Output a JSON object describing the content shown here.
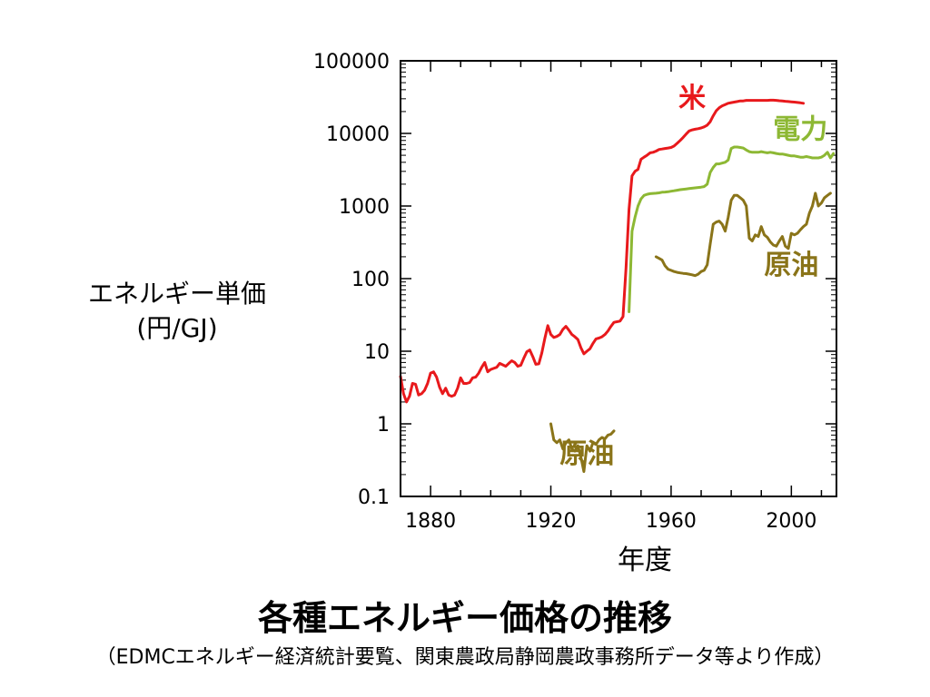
{
  "chart_data": {
    "type": "line",
    "title": "各種エネルギー価格の推移",
    "subtitle": "（EDMCエネルギー経済統計要覧、関東農政局静岡農政事務所データ等より作成）",
    "xlabel": "年度",
    "ylabel": [
      "エネルギー単価",
      "(円/GJ)"
    ],
    "xlim": [
      1870,
      2015
    ],
    "ylim": [
      0.1,
      100000
    ],
    "yscale": "log",
    "xticks": [
      1880,
      1920,
      1960,
      2000
    ],
    "yticks": [
      0.1,
      1,
      10,
      100,
      1000,
      10000,
      100000
    ],
    "yticklabels": [
      "0.1",
      "1",
      "10",
      "100",
      "1000",
      "10000",
      "100000"
    ],
    "grid": false,
    "series": [
      {
        "name": "米",
        "color": "#e8191c",
        "points": [
          [
            1870,
            4.5
          ],
          [
            1871,
            2.6
          ],
          [
            1872,
            2.0
          ],
          [
            1873,
            2.4
          ],
          [
            1874,
            3.6
          ],
          [
            1875,
            3.5
          ],
          [
            1876,
            2.5
          ],
          [
            1877,
            2.6
          ],
          [
            1878,
            2.9
          ],
          [
            1879,
            3.6
          ],
          [
            1880,
            5.0
          ],
          [
            1881,
            5.2
          ],
          [
            1882,
            4.4
          ],
          [
            1883,
            3.2
          ],
          [
            1884,
            2.6
          ],
          [
            1885,
            3.1
          ],
          [
            1886,
            2.5
          ],
          [
            1887,
            2.4
          ],
          [
            1888,
            2.5
          ],
          [
            1889,
            3.1
          ],
          [
            1890,
            4.3
          ],
          [
            1891,
            3.6
          ],
          [
            1892,
            3.6
          ],
          [
            1893,
            3.7
          ],
          [
            1894,
            4.3
          ],
          [
            1895,
            4.4
          ],
          [
            1896,
            5.0
          ],
          [
            1897,
            6.0
          ],
          [
            1898,
            7.0
          ],
          [
            1899,
            5.2
          ],
          [
            1900,
            5.6
          ],
          [
            1901,
            5.8
          ],
          [
            1902,
            6.0
          ],
          [
            1903,
            6.8
          ],
          [
            1904,
            6.5
          ],
          [
            1905,
            6.2
          ],
          [
            1906,
            6.8
          ],
          [
            1907,
            7.4
          ],
          [
            1908,
            7.0
          ],
          [
            1909,
            6.2
          ],
          [
            1910,
            6.4
          ],
          [
            1911,
            8.0
          ],
          [
            1912,
            9.8
          ],
          [
            1913,
            10.4
          ],
          [
            1914,
            8.4
          ],
          [
            1915,
            6.6
          ],
          [
            1916,
            6.7
          ],
          [
            1917,
            9.5
          ],
          [
            1918,
            15.0
          ],
          [
            1919,
            22.5
          ],
          [
            1920,
            17.0
          ],
          [
            1921,
            15.5
          ],
          [
            1922,
            16.0
          ],
          [
            1923,
            17.0
          ],
          [
            1924,
            20.0
          ],
          [
            1925,
            22.0
          ],
          [
            1926,
            19.5
          ],
          [
            1927,
            17.0
          ],
          [
            1928,
            15.8
          ],
          [
            1929,
            14.5
          ],
          [
            1930,
            11.2
          ],
          [
            1931,
            9.2
          ],
          [
            1932,
            10.0
          ],
          [
            1933,
            10.8
          ],
          [
            1934,
            12.8
          ],
          [
            1935,
            14.8
          ],
          [
            1936,
            15.2
          ],
          [
            1937,
            15.8
          ],
          [
            1938,
            17.0
          ],
          [
            1939,
            19.0
          ],
          [
            1940,
            22.0
          ],
          [
            1941,
            25.0
          ],
          [
            1942,
            25.5
          ],
          [
            1943,
            26.0
          ],
          [
            1944,
            30.0
          ],
          [
            1945,
            140.0
          ],
          [
            1946,
            900.0
          ],
          [
            1947,
            2600.0
          ],
          [
            1948,
            3000.0
          ],
          [
            1949,
            3200.0
          ],
          [
            1950,
            4400.0
          ],
          [
            1951,
            4700.0
          ],
          [
            1952,
            5000.0
          ],
          [
            1953,
            5400.0
          ],
          [
            1954,
            5500.0
          ],
          [
            1955,
            5700.0
          ],
          [
            1956,
            6000.0
          ],
          [
            1957,
            6100.0
          ],
          [
            1958,
            6200.0
          ],
          [
            1959,
            6300.0
          ],
          [
            1960,
            6400.0
          ],
          [
            1961,
            6700.0
          ],
          [
            1962,
            7300.0
          ],
          [
            1963,
            8000.0
          ],
          [
            1964,
            8800.0
          ],
          [
            1965,
            9800.0
          ],
          [
            1966,
            10800.0
          ],
          [
            1967,
            11200.0
          ],
          [
            1968,
            11400.0
          ],
          [
            1969,
            11600.0
          ],
          [
            1970,
            11900.0
          ],
          [
            1971,
            12300.0
          ],
          [
            1972,
            13000.0
          ],
          [
            1973,
            14500.0
          ],
          [
            1974,
            17500.0
          ],
          [
            1975,
            20500.0
          ],
          [
            1976,
            22500.0
          ],
          [
            1977,
            24000.0
          ],
          [
            1978,
            25000.0
          ],
          [
            1979,
            26000.0
          ],
          [
            1980,
            26500.0
          ],
          [
            1981,
            27000.0
          ],
          [
            1982,
            27500.0
          ],
          [
            1983,
            28000.0
          ],
          [
            1984,
            28000.0
          ],
          [
            1985,
            28500.0
          ],
          [
            1986,
            28500.0
          ],
          [
            1987,
            28500.0
          ],
          [
            1988,
            28500.0
          ],
          [
            1989,
            28500.0
          ],
          [
            1990,
            28500.0
          ],
          [
            1991,
            28500.0
          ],
          [
            1992,
            28500.0
          ],
          [
            1993,
            28700.0
          ],
          [
            1994,
            28700.0
          ],
          [
            1995,
            28500.0
          ],
          [
            1996,
            28200.0
          ],
          [
            1997,
            28000.0
          ],
          [
            1998,
            27700.0
          ],
          [
            1999,
            27500.0
          ],
          [
            2000,
            27200.0
          ],
          [
            2001,
            27000.0
          ],
          [
            2002,
            26700.0
          ],
          [
            2003,
            26400.0
          ],
          [
            2004,
            26000.0
          ]
        ]
      },
      {
        "name": "電力",
        "color": "#8db834",
        "points": [
          [
            1946,
            35
          ],
          [
            1947,
            450
          ],
          [
            1948,
            700
          ],
          [
            1949,
            1000
          ],
          [
            1950,
            1250
          ],
          [
            1951,
            1400
          ],
          [
            1952,
            1450
          ],
          [
            1953,
            1480
          ],
          [
            1954,
            1490
          ],
          [
            1955,
            1500
          ],
          [
            1956,
            1520
          ],
          [
            1957,
            1550
          ],
          [
            1958,
            1560
          ],
          [
            1959,
            1570
          ],
          [
            1960,
            1600
          ],
          [
            1961,
            1620
          ],
          [
            1962,
            1650
          ],
          [
            1963,
            1680
          ],
          [
            1964,
            1700
          ],
          [
            1965,
            1720
          ],
          [
            1966,
            1740
          ],
          [
            1967,
            1760
          ],
          [
            1968,
            1780
          ],
          [
            1969,
            1800
          ],
          [
            1970,
            1820
          ],
          [
            1971,
            1850
          ],
          [
            1972,
            2000
          ],
          [
            1973,
            2900
          ],
          [
            1974,
            3400
          ],
          [
            1975,
            3800
          ],
          [
            1976,
            3800
          ],
          [
            1977,
            3900
          ],
          [
            1978,
            4000
          ],
          [
            1979,
            4300
          ],
          [
            1980,
            6200
          ],
          [
            1981,
            6500
          ],
          [
            1982,
            6500
          ],
          [
            1983,
            6400
          ],
          [
            1984,
            6300
          ],
          [
            1985,
            5900
          ],
          [
            1986,
            5600
          ],
          [
            1987,
            5500
          ],
          [
            1988,
            5500
          ],
          [
            1989,
            5500
          ],
          [
            1990,
            5600
          ],
          [
            1991,
            5500
          ],
          [
            1992,
            5400
          ],
          [
            1993,
            5500
          ],
          [
            1994,
            5400
          ],
          [
            1995,
            5300
          ],
          [
            1996,
            5200
          ],
          [
            1997,
            5200
          ],
          [
            1998,
            5100
          ],
          [
            1999,
            5000
          ],
          [
            2000,
            4900
          ],
          [
            2001,
            4900
          ],
          [
            2002,
            4800
          ],
          [
            2003,
            4700
          ],
          [
            2004,
            4700
          ],
          [
            2005,
            4800
          ],
          [
            2006,
            4700
          ],
          [
            2007,
            4600
          ],
          [
            2008,
            4600
          ],
          [
            2009,
            4600
          ],
          [
            2010,
            4700
          ],
          [
            2011,
            5000
          ],
          [
            2012,
            5500
          ],
          [
            2013,
            4600
          ],
          [
            2014,
            5300
          ]
        ]
      },
      {
        "name": "原油",
        "color": "#8a7419",
        "segments": [
          [
            [
              1920,
              1.0
            ],
            [
              1921,
              0.6
            ],
            [
              1922,
              0.55
            ],
            [
              1923,
              0.6
            ],
            [
              1924,
              0.45
            ],
            [
              1925,
              0.55
            ],
            [
              1926,
              0.6
            ],
            [
              1927,
              0.45
            ],
            [
              1928,
              0.42
            ],
            [
              1929,
              0.5
            ],
            [
              1930,
              0.35
            ],
            [
              1931,
              0.22
            ],
            [
              1932,
              0.5
            ],
            [
              1933,
              0.42
            ],
            [
              1934,
              0.55
            ],
            [
              1935,
              0.52
            ],
            [
              1936,
              0.6
            ],
            [
              1937,
              0.65
            ],
            [
              1938,
              0.62
            ],
            [
              1939,
              0.7
            ],
            [
              1940,
              0.72
            ],
            [
              1941,
              0.8
            ]
          ],
          [
            [
              1955,
              200
            ],
            [
              1956,
              190
            ],
            [
              1957,
              180
            ],
            [
              1958,
              150
            ],
            [
              1959,
              135
            ],
            [
              1960,
              130
            ],
            [
              1961,
              125
            ],
            [
              1962,
              122
            ],
            [
              1963,
              120
            ],
            [
              1964,
              118
            ],
            [
              1965,
              117
            ],
            [
              1966,
              115
            ],
            [
              1967,
              113
            ],
            [
              1968,
              110
            ],
            [
              1969,
              115
            ],
            [
              1970,
              125
            ],
            [
              1971,
              130
            ],
            [
              1972,
              155
            ],
            [
              1973,
              300
            ],
            [
              1974,
              560
            ],
            [
              1975,
              600
            ],
            [
              1976,
              620
            ],
            [
              1977,
              560
            ],
            [
              1978,
              450
            ],
            [
              1979,
              700
            ],
            [
              1980,
              1200
            ],
            [
              1981,
              1400
            ],
            [
              1982,
              1400
            ],
            [
              1983,
              1300
            ],
            [
              1984,
              1200
            ],
            [
              1985,
              1000
            ],
            [
              1986,
              360
            ],
            [
              1987,
              330
            ],
            [
              1988,
              400
            ],
            [
              1989,
              380
            ],
            [
              1990,
              520
            ],
            [
              1991,
              400
            ],
            [
              1992,
              370
            ],
            [
              1993,
              320
            ],
            [
              1994,
              290
            ],
            [
              1995,
              280
            ],
            [
              1996,
              330
            ],
            [
              1997,
              380
            ],
            [
              1998,
              280
            ],
            [
              1999,
              260
            ],
            [
              2000,
              420
            ],
            [
              2001,
              400
            ],
            [
              2002,
              420
            ],
            [
              2003,
              470
            ],
            [
              2004,
              520
            ],
            [
              2005,
              560
            ],
            [
              2006,
              800
            ],
            [
              2007,
              1000
            ],
            [
              2008,
              1500
            ],
            [
              2009,
              1000
            ],
            [
              2010,
              1100
            ],
            [
              2011,
              1300
            ],
            [
              2012,
              1400
            ],
            [
              2013,
              1500
            ]
          ]
        ]
      }
    ],
    "annotations": [
      {
        "text": "米",
        "color": "#e8191c",
        "anchor": [
          1967,
          23000
        ]
      },
      {
        "text": "電力",
        "color": "#8db834",
        "anchor": [
          2003,
          8500
        ]
      },
      {
        "text": "原油",
        "color": "#8a7419",
        "anchor": [
          2000,
          115
        ]
      },
      {
        "text": "原油",
        "color": "#8a7419",
        "anchor": [
          1932,
          0.29
        ]
      }
    ]
  }
}
